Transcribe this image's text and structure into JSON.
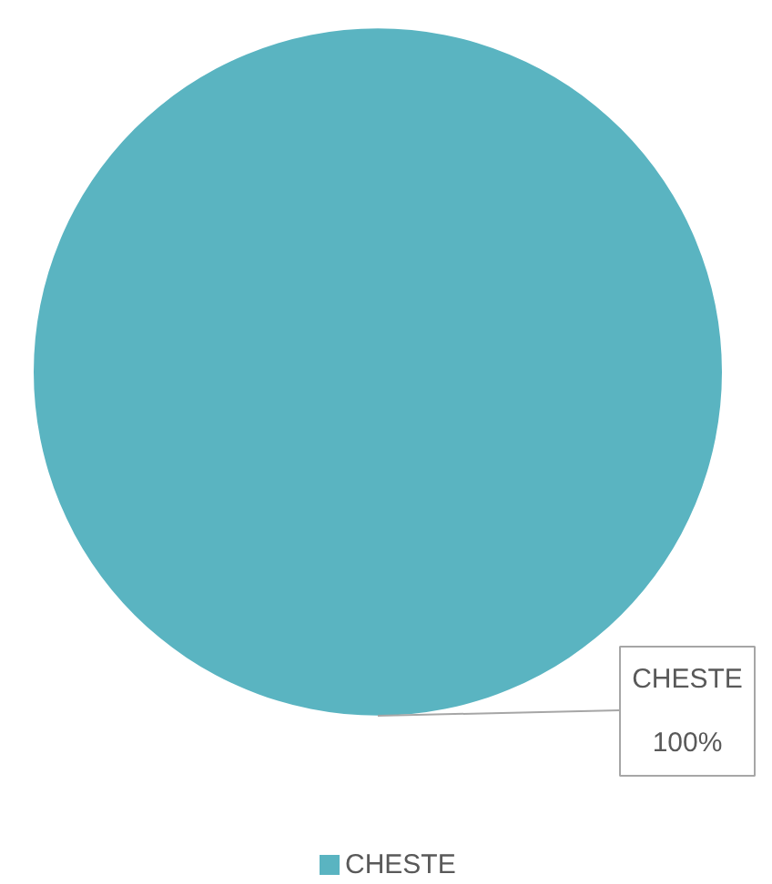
{
  "chart_data": {
    "type": "pie",
    "categories": [
      "CHESTE"
    ],
    "values": [
      100
    ],
    "colors": [
      "#5ab4c1"
    ],
    "legend": "bottom",
    "value_labels": [
      "100%"
    ]
  }
}
